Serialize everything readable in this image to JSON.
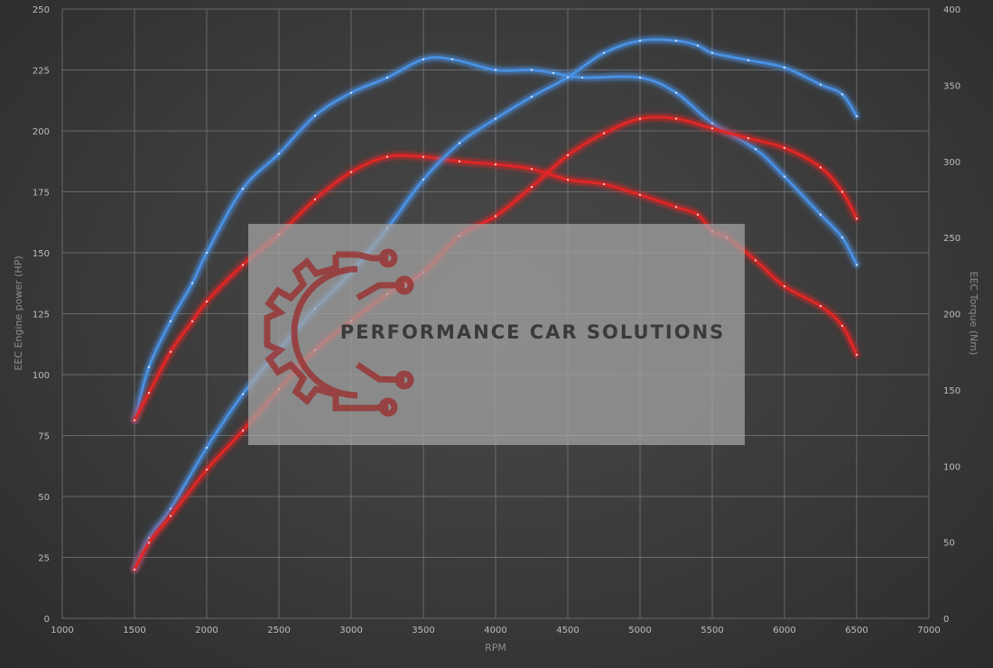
{
  "chart_data": {
    "type": "line",
    "xlabel": "RPM",
    "ylabel": "EEC Engine power (HP)",
    "y2label": "EEC Torque (Nm)",
    "xlim": [
      1000,
      7000
    ],
    "ylim": [
      0,
      250
    ],
    "y2lim": [
      0,
      400
    ],
    "grid": true,
    "x_ticks": [
      1000,
      1500,
      2000,
      2500,
      3000,
      3500,
      4000,
      4500,
      5000,
      5500,
      6000,
      6500,
      7000
    ],
    "y_ticks": [
      0,
      25,
      50,
      75,
      100,
      125,
      150,
      175,
      200,
      225,
      250
    ],
    "y2_ticks": [
      0,
      50,
      100,
      150,
      200,
      250,
      300,
      350,
      400
    ],
    "series": [
      {
        "axis": "right",
        "color": "#4a90e2",
        "points": [
          [
            1500,
            130
          ],
          [
            1600,
            165
          ],
          [
            1750,
            195
          ],
          [
            1900,
            220
          ],
          [
            2000,
            240
          ],
          [
            2250,
            282
          ],
          [
            2500,
            305
          ],
          [
            2750,
            330
          ],
          [
            3000,
            345
          ],
          [
            3250,
            355
          ],
          [
            3500,
            367
          ],
          [
            3700,
            367
          ],
          [
            4000,
            360
          ],
          [
            4250,
            360
          ],
          [
            4400,
            358
          ],
          [
            4600,
            355
          ],
          [
            5000,
            355
          ],
          [
            5250,
            345
          ],
          [
            5500,
            325
          ],
          [
            5800,
            308
          ],
          [
            6000,
            290
          ],
          [
            6250,
            265
          ],
          [
            6400,
            250
          ],
          [
            6500,
            232
          ]
        ]
      },
      {
        "axis": "right",
        "color": "#e02525",
        "points": [
          [
            1500,
            130
          ],
          [
            1600,
            148
          ],
          [
            1750,
            175
          ],
          [
            1900,
            195
          ],
          [
            2000,
            208
          ],
          [
            2250,
            232
          ],
          [
            2500,
            252
          ],
          [
            2750,
            275
          ],
          [
            3000,
            293
          ],
          [
            3250,
            303
          ],
          [
            3500,
            303
          ],
          [
            3750,
            300
          ],
          [
            4000,
            298
          ],
          [
            4250,
            295
          ],
          [
            4500,
            288
          ],
          [
            4750,
            285
          ],
          [
            5000,
            278
          ],
          [
            5250,
            270
          ],
          [
            5400,
            265
          ],
          [
            5500,
            254
          ],
          [
            5600,
            250
          ],
          [
            5800,
            235
          ],
          [
            6000,
            218
          ],
          [
            6250,
            205
          ],
          [
            6400,
            192
          ],
          [
            6500,
            173
          ]
        ]
      },
      {
        "axis": "left",
        "color": "#4a90e2",
        "points": [
          [
            1500,
            20
          ],
          [
            1600,
            33
          ],
          [
            1750,
            45
          ],
          [
            2000,
            70
          ],
          [
            2250,
            92
          ],
          [
            2500,
            110
          ],
          [
            2750,
            127
          ],
          [
            3000,
            142
          ],
          [
            3250,
            160
          ],
          [
            3500,
            180
          ],
          [
            3750,
            195
          ],
          [
            4000,
            205
          ],
          [
            4250,
            214
          ],
          [
            4500,
            222
          ],
          [
            4750,
            232
          ],
          [
            5000,
            237
          ],
          [
            5250,
            237
          ],
          [
            5400,
            235
          ],
          [
            5500,
            232
          ],
          [
            5750,
            229
          ],
          [
            6000,
            226
          ],
          [
            6250,
            219
          ],
          [
            6400,
            215
          ],
          [
            6500,
            206
          ]
        ]
      },
      {
        "axis": "left",
        "color": "#e02525",
        "points": [
          [
            1500,
            20
          ],
          [
            1600,
            31
          ],
          [
            1750,
            42
          ],
          [
            2000,
            61
          ],
          [
            2250,
            77
          ],
          [
            2500,
            94
          ],
          [
            2750,
            110
          ],
          [
            3000,
            122
          ],
          [
            3250,
            133
          ],
          [
            3500,
            142
          ],
          [
            3750,
            157
          ],
          [
            4000,
            165
          ],
          [
            4250,
            177
          ],
          [
            4500,
            190
          ],
          [
            4750,
            199
          ],
          [
            5000,
            205
          ],
          [
            5250,
            205
          ],
          [
            5500,
            201
          ],
          [
            5750,
            197
          ],
          [
            6000,
            193
          ],
          [
            6250,
            185
          ],
          [
            6400,
            175
          ],
          [
            6500,
            164
          ]
        ]
      }
    ]
  },
  "watermark": {
    "text": "PERFORMANCE CAR SOLUTIONS",
    "logo_color": "#9a2e2e"
  }
}
